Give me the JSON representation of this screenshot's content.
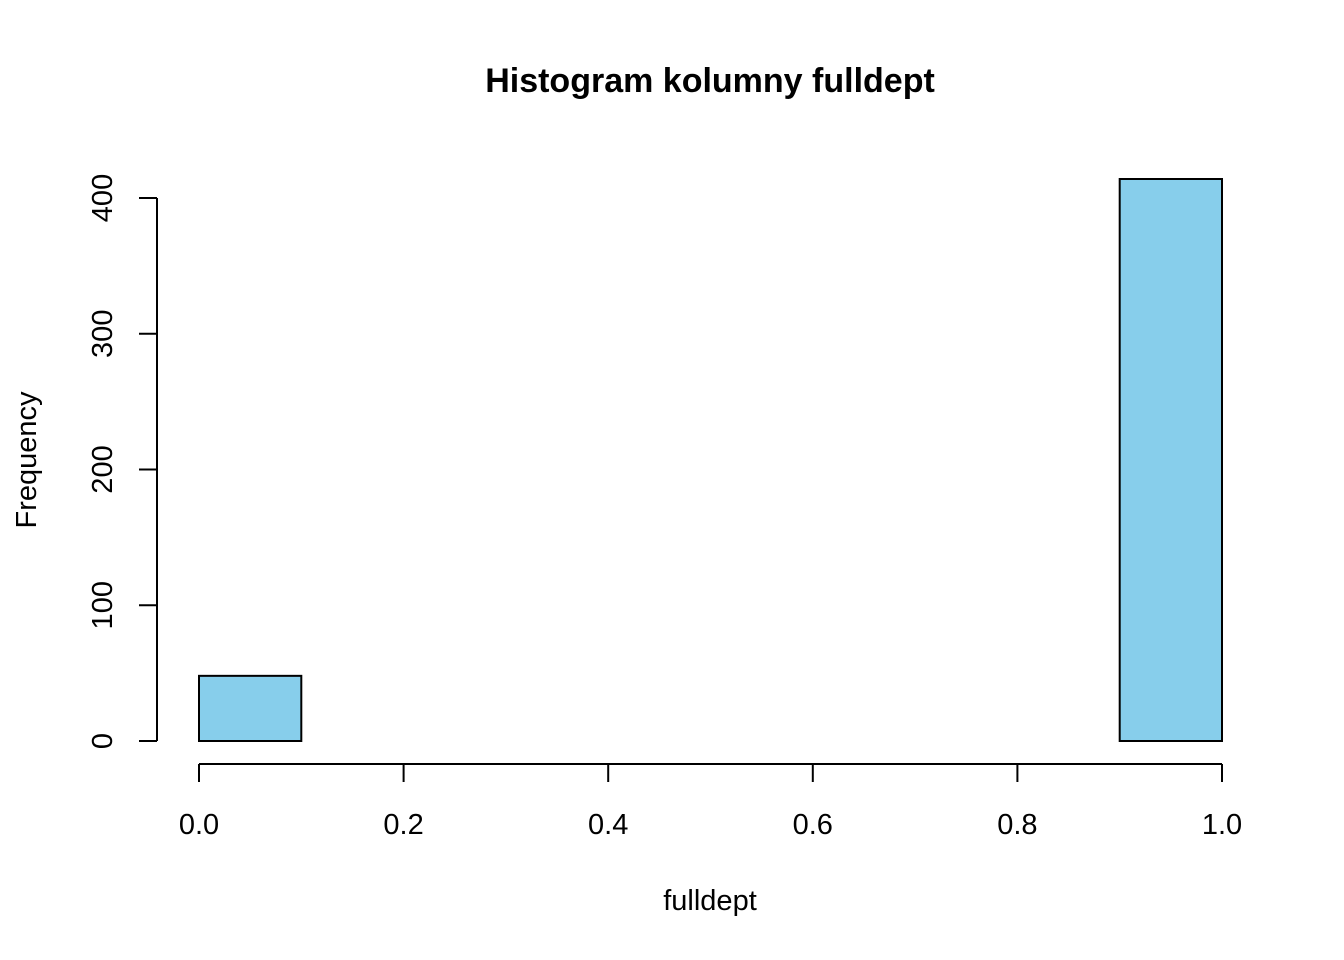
{
  "chart_data": {
    "type": "bar",
    "subtype": "histogram",
    "title": "Histogram kolumny fulldept",
    "xlabel": "fulldept",
    "ylabel": "Frequency",
    "bin_edges": [
      0.0,
      0.1,
      0.2,
      0.3,
      0.4,
      0.5,
      0.6,
      0.7,
      0.8,
      0.9,
      1.0
    ],
    "values": [
      48,
      0,
      0,
      0,
      0,
      0,
      0,
      0,
      0,
      414
    ],
    "xlim": [
      0.0,
      1.0
    ],
    "ylim": [
      0,
      414
    ],
    "x_ticks": [
      0.0,
      0.2,
      0.4,
      0.6,
      0.8,
      1.0
    ],
    "x_tick_labels": [
      "0.0",
      "0.2",
      "0.4",
      "0.6",
      "0.8",
      "1.0"
    ],
    "y_ticks": [
      0,
      100,
      200,
      300,
      400
    ],
    "y_tick_labels": [
      "0",
      "100",
      "200",
      "300",
      "400"
    ],
    "bar_color": "#87CEEB",
    "border_color": "#000000",
    "grid": false
  }
}
